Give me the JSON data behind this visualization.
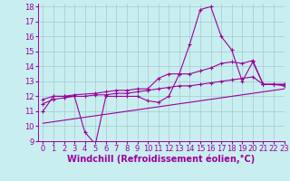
{
  "background_color": "#c8eef0",
  "grid_color": "#a8c8d0",
  "line_color": "#9b009b",
  "xlim": [
    -0.5,
    23
  ],
  "ylim": [
    9,
    18.2
  ],
  "xlabel": "Windchill (Refroidissement éolien,°C)",
  "xlabel_fontsize": 7,
  "xticks": [
    0,
    1,
    2,
    3,
    4,
    5,
    6,
    7,
    8,
    9,
    10,
    11,
    12,
    13,
    14,
    15,
    16,
    17,
    18,
    19,
    20,
    21,
    22,
    23
  ],
  "yticks": [
    9,
    10,
    11,
    12,
    13,
    14,
    15,
    16,
    17,
    18
  ],
  "tick_fontsize": 6,
  "line1_x": [
    0,
    1,
    2,
    3,
    4,
    5,
    6,
    7,
    8,
    9,
    10,
    11,
    12,
    13,
    14,
    15,
    16,
    17,
    18,
    19,
    20,
    21,
    22,
    23
  ],
  "line1_y": [
    11,
    12,
    12,
    12,
    9.6,
    8.8,
    12,
    12,
    12,
    12,
    11.7,
    11.6,
    12,
    13.5,
    15.5,
    17.8,
    18,
    16,
    15.1,
    13,
    14.3,
    12.8,
    12.8,
    12.7
  ],
  "line2_x": [
    0,
    1,
    2,
    3,
    5,
    6,
    7,
    8,
    9,
    10,
    11,
    12,
    13,
    14,
    15,
    16,
    17,
    18,
    19,
    20,
    21,
    22,
    23
  ],
  "line2_y": [
    11.8,
    12,
    12,
    12.1,
    12.2,
    12.3,
    12.4,
    12.4,
    12.5,
    12.5,
    13.2,
    13.5,
    13.5,
    13.5,
    13.7,
    13.9,
    14.2,
    14.3,
    14.2,
    14.4,
    12.8,
    12.8,
    12.8
  ],
  "line3_x": [
    0,
    1,
    2,
    3,
    4,
    5,
    6,
    7,
    8,
    9,
    10,
    11,
    12,
    13,
    14,
    15,
    16,
    17,
    18,
    19,
    20,
    21,
    22,
    23
  ],
  "line3_y": [
    11.5,
    11.8,
    11.9,
    12.0,
    12.0,
    12.1,
    12.1,
    12.2,
    12.2,
    12.3,
    12.4,
    12.5,
    12.6,
    12.7,
    12.7,
    12.8,
    12.9,
    13.0,
    13.1,
    13.2,
    13.3,
    12.8,
    12.8,
    12.8
  ],
  "line4_x": [
    0,
    23
  ],
  "line4_y": [
    10.2,
    12.5
  ]
}
